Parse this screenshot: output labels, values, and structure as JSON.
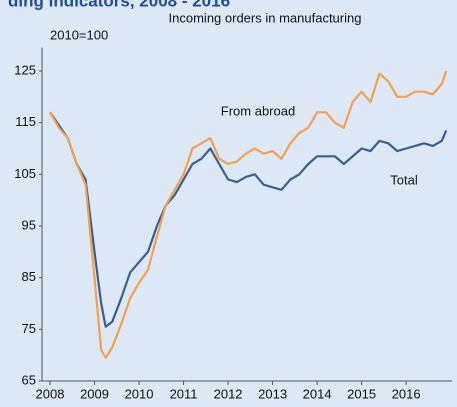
{
  "chart_data": {
    "type": "line",
    "title": "ding indicators, 2008 - 2016",
    "subtitle": "Incoming orders in manufacturing",
    "y_label": "2010=100",
    "annotations": [
      "From abroad",
      "Total"
    ],
    "x": [
      2008.0,
      2008.2,
      2008.4,
      2008.6,
      2008.8,
      2009.0,
      2009.15,
      2009.25,
      2009.4,
      2009.6,
      2009.8,
      2010.0,
      2010.2,
      2010.4,
      2010.6,
      2010.8,
      2011.0,
      2011.2,
      2011.4,
      2011.6,
      2011.8,
      2012.0,
      2012.2,
      2012.4,
      2012.6,
      2012.8,
      2013.0,
      2013.2,
      2013.4,
      2013.6,
      2013.8,
      2014.0,
      2014.2,
      2014.4,
      2014.6,
      2014.8,
      2015.0,
      2015.2,
      2015.4,
      2015.6,
      2015.8,
      2016.0,
      2016.2,
      2016.4,
      2016.6,
      2016.8,
      2016.9
    ],
    "series": [
      {
        "name": "Total",
        "color": "#3a5f8f",
        "values": [
          117,
          114.5,
          112,
          107,
          104,
          90,
          80,
          75.5,
          76.5,
          81,
          86,
          88,
          90,
          95,
          99,
          101,
          104,
          107,
          108,
          110,
          107,
          104,
          103.5,
          104.5,
          105,
          103,
          102.5,
          102,
          104,
          105,
          107,
          108.5,
          108.5,
          108.5,
          107,
          108.5,
          110,
          109.5,
          111.5,
          111,
          109.5,
          110,
          110.5,
          111,
          110.5,
          111.5,
          113.5
        ]
      },
      {
        "name": "From abroad",
        "color": "#f5a050",
        "values": [
          117,
          114,
          112,
          107,
          103,
          85,
          71,
          69.5,
          71.5,
          76,
          81,
          84,
          86.5,
          93,
          99,
          102,
          105,
          110,
          111,
          112,
          108,
          107,
          107.5,
          109,
          110,
          109,
          109.5,
          108,
          111,
          113,
          114,
          117,
          117,
          115,
          114,
          119,
          121,
          119,
          124.5,
          123,
          120,
          120,
          121,
          121,
          120.5,
          122.5,
          125
        ]
      }
    ],
    "xlim": [
      2007.82,
      2017.03
    ],
    "xticks": [
      2008,
      2009,
      2010,
      2011,
      2012,
      2013,
      2014,
      2015,
      2016
    ],
    "ylim": [
      65,
      128
    ],
    "yticks": [
      65,
      75,
      85,
      95,
      105,
      115,
      125
    ],
    "grid": false
  }
}
